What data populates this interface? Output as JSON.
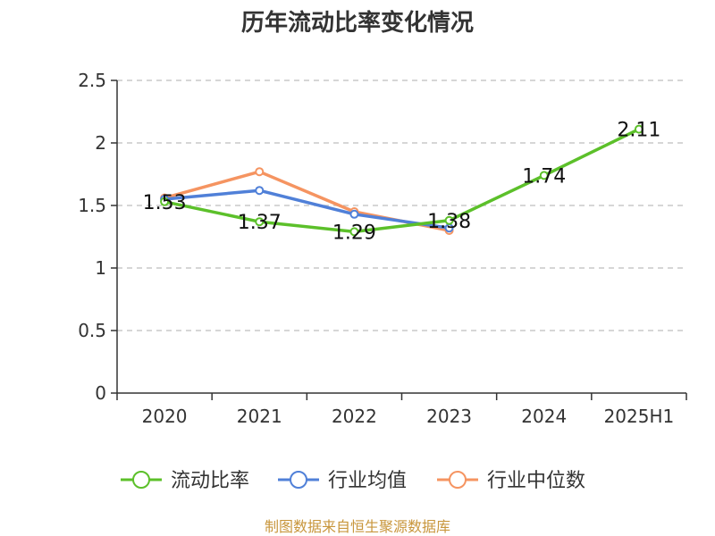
{
  "chart_data": {
    "type": "line",
    "title": "历年流动比率变化情况",
    "categories": [
      "2020",
      "2021",
      "2022",
      "2023",
      "2024",
      "2025H1"
    ],
    "ylim": [
      0,
      2.5
    ],
    "yticks": [
      "0",
      "0.5",
      "1",
      "1.5",
      "2",
      "2.5"
    ],
    "grid": true,
    "legend_position": "bottom",
    "series": [
      {
        "name": "流动比率",
        "color": "#5cc02a",
        "values": [
          1.53,
          1.37,
          1.29,
          1.38,
          1.74,
          2.11
        ],
        "labels": [
          "1.53",
          "1.37",
          "1.29",
          "1.38",
          "1.74",
          "2.11"
        ]
      },
      {
        "name": "行业均值",
        "color": "#5080d8",
        "values": [
          1.55,
          1.62,
          1.43,
          1.32,
          null,
          null
        ]
      },
      {
        "name": "行业中位数",
        "color": "#f59461",
        "values": [
          1.56,
          1.77,
          1.45,
          1.3,
          null,
          null
        ]
      }
    ],
    "source": "制图数据来自恒生聚源数据库"
  }
}
